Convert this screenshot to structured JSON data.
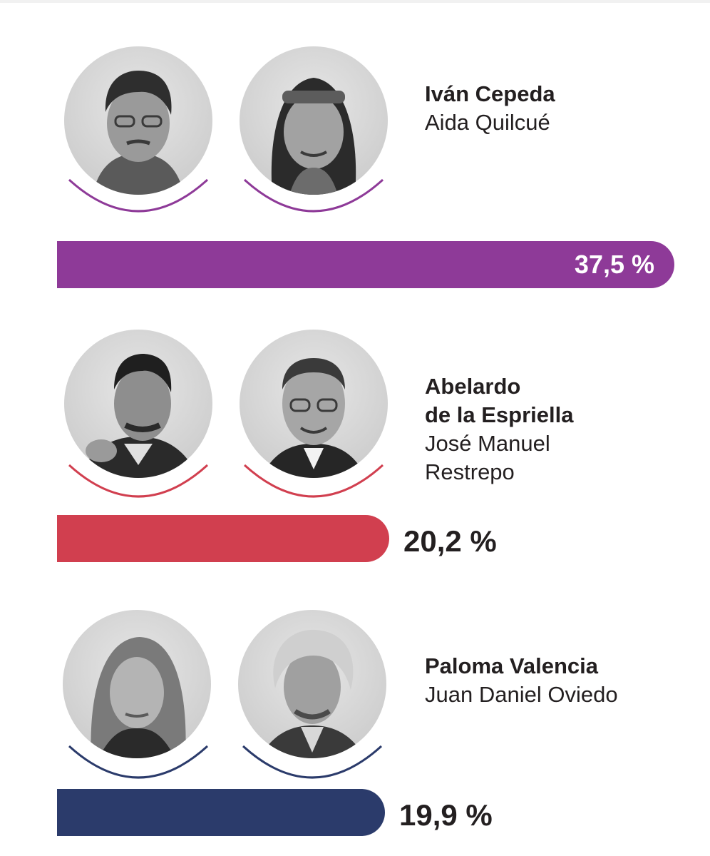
{
  "chart_data": {
    "type": "bar",
    "orientation": "horizontal",
    "categories": [
      "Iván Cepeda / Aida Quilcué",
      "Abelardo de la Espriella / José Manuel Restrepo",
      "Paloma Valencia / Juan Daniel Oviedo"
    ],
    "values": [
      37.5,
      20.2,
      19.9
    ],
    "value_labels": [
      "37,5 %",
      "20,2 %",
      "19,9 %"
    ],
    "colors": [
      "#8e3a98",
      "#d13f4f",
      "#2b3b6b"
    ],
    "xlim": [
      0,
      37.5
    ],
    "grid": false,
    "legend": "none"
  },
  "candidates": [
    {
      "president_name": "Iván Cepeda",
      "vp_name": "Aida Quilcué",
      "value": 37.5,
      "value_label": "37,5 %",
      "color": "#8e3a98",
      "label_inside": true
    },
    {
      "president_name_line1": "Abelardo",
      "president_name_line2": "de la Espriella",
      "vp_name_line1": "José Manuel",
      "vp_name_line2": "Restrepo",
      "value": 20.2,
      "value_label": "20,2 %",
      "color": "#d13f4f",
      "label_inside": false
    },
    {
      "president_name": "Paloma Valencia",
      "vp_name": "Juan Daniel Oviedo",
      "value": 19.9,
      "value_label": "19,9 %",
      "color": "#2b3b6b",
      "label_inside": false
    }
  ]
}
